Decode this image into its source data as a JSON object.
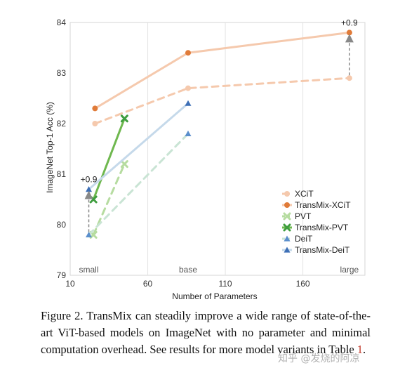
{
  "chart_data": {
    "type": "line",
    "xlabel": "Number of Parameters",
    "ylabel": "ImageNet Top-1 Acc (%)",
    "xlim": [
      10,
      200
    ],
    "ylim": [
      79,
      84
    ],
    "xticks": [
      10,
      60,
      110,
      160
    ],
    "yticks": [
      79,
      80,
      81,
      82,
      83,
      84
    ],
    "grid": "vertical",
    "size_labels": [
      {
        "text": "small",
        "x": 22
      },
      {
        "text": "base",
        "x": 86
      },
      {
        "text": "large",
        "x": 190
      }
    ],
    "series": [
      {
        "name": "XCiT",
        "color": "#f5c9ad",
        "marker": "circle",
        "dash": true,
        "points": [
          {
            "x": 26,
            "y": 82.0
          },
          {
            "x": 86,
            "y": 82.7
          },
          {
            "x": 190,
            "y": 82.9
          }
        ]
      },
      {
        "name": "TransMix-XCiT",
        "color": "#e07b39",
        "line_color": "#f5c9ad",
        "marker": "circle",
        "dash": false,
        "points": [
          {
            "x": 26,
            "y": 82.3
          },
          {
            "x": 86,
            "y": 83.4
          },
          {
            "x": 190,
            "y": 83.8
          }
        ]
      },
      {
        "name": "PVT",
        "color": "#b6dca0",
        "marker": "x",
        "dash": true,
        "points": [
          {
            "x": 25,
            "y": 79.8
          },
          {
            "x": 45,
            "y": 81.2
          }
        ]
      },
      {
        "name": "TransMix-PVT",
        "color": "#3f9e3f",
        "line_color": "#6fb84f",
        "marker": "x",
        "dash": false,
        "points": [
          {
            "x": 25,
            "y": 80.5
          },
          {
            "x": 45,
            "y": 82.1
          }
        ]
      },
      {
        "name": "DeiT",
        "color": "#5b8fcc",
        "line_color": "#c9e4d4",
        "marker": "triangle",
        "dash": true,
        "points": [
          {
            "x": 22,
            "y": 79.8
          },
          {
            "x": 86,
            "y": 81.8
          }
        ]
      },
      {
        "name": "TransMix-DeiT",
        "color": "#3d6fb6",
        "line_color": "#c5d9ea",
        "marker": "triangle",
        "dash": false,
        "points": [
          {
            "x": 22,
            "y": 80.7
          },
          {
            "x": 86,
            "y": 82.4
          }
        ]
      }
    ],
    "annotations": [
      {
        "text": "+0.9",
        "x": 22,
        "y_from": 79.8,
        "y_to": 80.7
      },
      {
        "text": "+0.9",
        "x": 190,
        "y_from": 82.9,
        "y_to": 83.8
      }
    ],
    "legend": "center-right"
  },
  "caption": {
    "text": "Figure 2. TransMix can steadily improve a wide range of state-of-the-art ViT-based models on ImageNet with no parameter and minimal computation overhead. See results for more model variants in Table ",
    "ref": "1",
    "end": "."
  },
  "watermark": "知乎 @发烧的阿凉"
}
